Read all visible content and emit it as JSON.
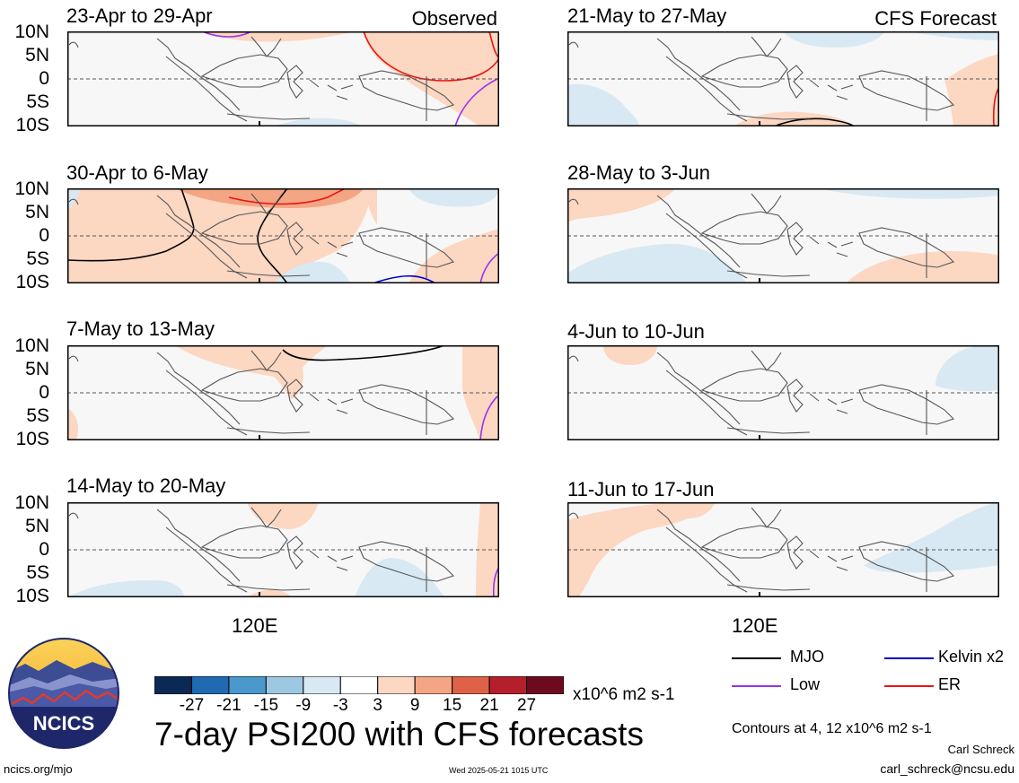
{
  "title": "7-day PSI200 with CFS forecasts",
  "observed_label": "Observed",
  "forecast_label": "CFS Forecast",
  "y_axis_labels": [
    "10N",
    "5N",
    "0",
    "5S",
    "10S"
  ],
  "x_axis_label": "120E",
  "panels_observed": [
    {
      "title": "23-Apr to 29-Apr"
    },
    {
      "title": "30-Apr to 6-May"
    },
    {
      "title": "7-May to 13-May"
    },
    {
      "title": "14-May to 20-May"
    }
  ],
  "panels_forecast": [
    {
      "title": "21-May to 27-May"
    },
    {
      "title": "28-May to 3-Jun"
    },
    {
      "title": "4-Jun to 10-Jun"
    },
    {
      "title": "11-Jun to 17-Jun"
    }
  ],
  "colorbar": {
    "tick_labels": [
      "-27",
      "-21",
      "-15",
      "-9",
      "-3",
      "3",
      "9",
      "15",
      "21",
      "27"
    ],
    "units": "x10^6 m2 s-1",
    "colors": [
      "#0a2a55",
      "#1f6ab0",
      "#4a98cc",
      "#9ec8e2",
      "#d8e9f3",
      "#ffffff",
      "#fcd7c2",
      "#f3a584",
      "#de6247",
      "#b3202c",
      "#6e0a1e"
    ]
  },
  "legend": {
    "items": [
      {
        "label": "MJO",
        "color": "#000000"
      },
      {
        "label": "Kelvin x2",
        "color": "#0000cc"
      },
      {
        "label": "Low",
        "color": "#9933ee"
      },
      {
        "label": "ER",
        "color": "#ee1111"
      }
    ],
    "contours_note": "Contours at 4, 12 x10^6 m2 s-1"
  },
  "footer": {
    "url": "ncics.org/mjo",
    "timestamp": "Wed 2025-05-21 1015 UTC",
    "author": "Carl Schreck",
    "email": "carl_schreck@ncsu.edu"
  },
  "logo": {
    "text": "NCICS"
  }
}
